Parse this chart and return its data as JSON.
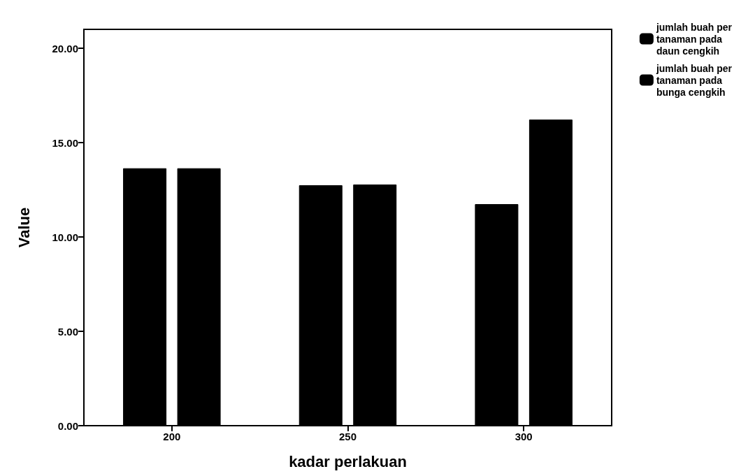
{
  "chart_data": {
    "type": "bar",
    "xlabel": "kadar perlakuan",
    "ylabel": "Value",
    "categories": [
      "200",
      "250",
      "300"
    ],
    "series": [
      {
        "name": "jumlah buah per\ntanaman pada\ndaun cengkih",
        "color": "#000000",
        "values": [
          13.64,
          12.74,
          11.74
        ]
      },
      {
        "name": "jumlah buah per\ntanaman pada\nbunga cengkih",
        "color": "#000000",
        "values": [
          13.64,
          12.78,
          16.22
        ]
      }
    ],
    "ylim": [
      0,
      21
    ],
    "yticks": [
      {
        "value": 0,
        "label": "0.00"
      },
      {
        "value": 5,
        "label": "5.00"
      },
      {
        "value": 10,
        "label": "10.00"
      },
      {
        "value": 15,
        "label": "15.00"
      },
      {
        "value": 20,
        "label": "20.00"
      }
    ],
    "grid": false,
    "legend": "top right"
  }
}
